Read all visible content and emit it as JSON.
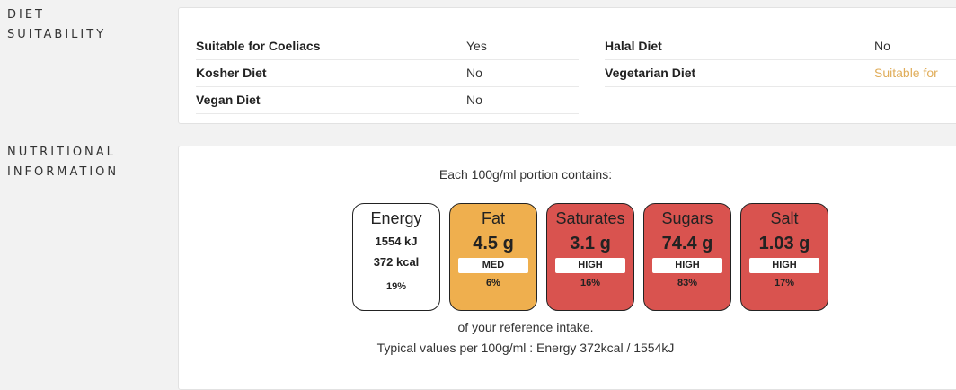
{
  "diet_section": {
    "label_line1": "DIET",
    "label_line2": "SUITABILITY",
    "left": [
      {
        "label": "Suitable for Coeliacs",
        "value": "Yes"
      },
      {
        "label": "Kosher Diet",
        "value": "No"
      },
      {
        "label": "Vegan Diet",
        "value": "No"
      }
    ],
    "right": [
      {
        "label": "Halal Diet",
        "value": "No"
      },
      {
        "label": "Vegetarian Diet",
        "value": "Suitable for"
      }
    ],
    "accent_color": "#e0ad5a"
  },
  "nutrition_section": {
    "label_line1": "NUTRITIONAL",
    "label_line2": "INFORMATION",
    "header": "Each 100g/ml portion contains:",
    "energy": {
      "name": "Energy",
      "kj": "1554 kJ",
      "kcal": "372 kcal",
      "percent": "19%"
    },
    "tiles": [
      {
        "name": "Fat",
        "amount": "4.5 g",
        "level": "MED",
        "percent": "6%",
        "color": "#efaf4e"
      },
      {
        "name": "Saturates",
        "amount": "3.1 g",
        "level": "HIGH",
        "percent": "16%",
        "color": "#d9534f"
      },
      {
        "name": "Sugars",
        "amount": "74.4 g",
        "level": "HIGH",
        "percent": "83%",
        "color": "#d9534f"
      },
      {
        "name": "Salt",
        "amount": "1.03 g",
        "level": "HIGH",
        "percent": "17%",
        "color": "#d9534f"
      }
    ],
    "footer_reference": "of your reference intake.",
    "footer_typical": "Typical values per 100g/ml : Energy 372kcal / 1554kJ"
  }
}
